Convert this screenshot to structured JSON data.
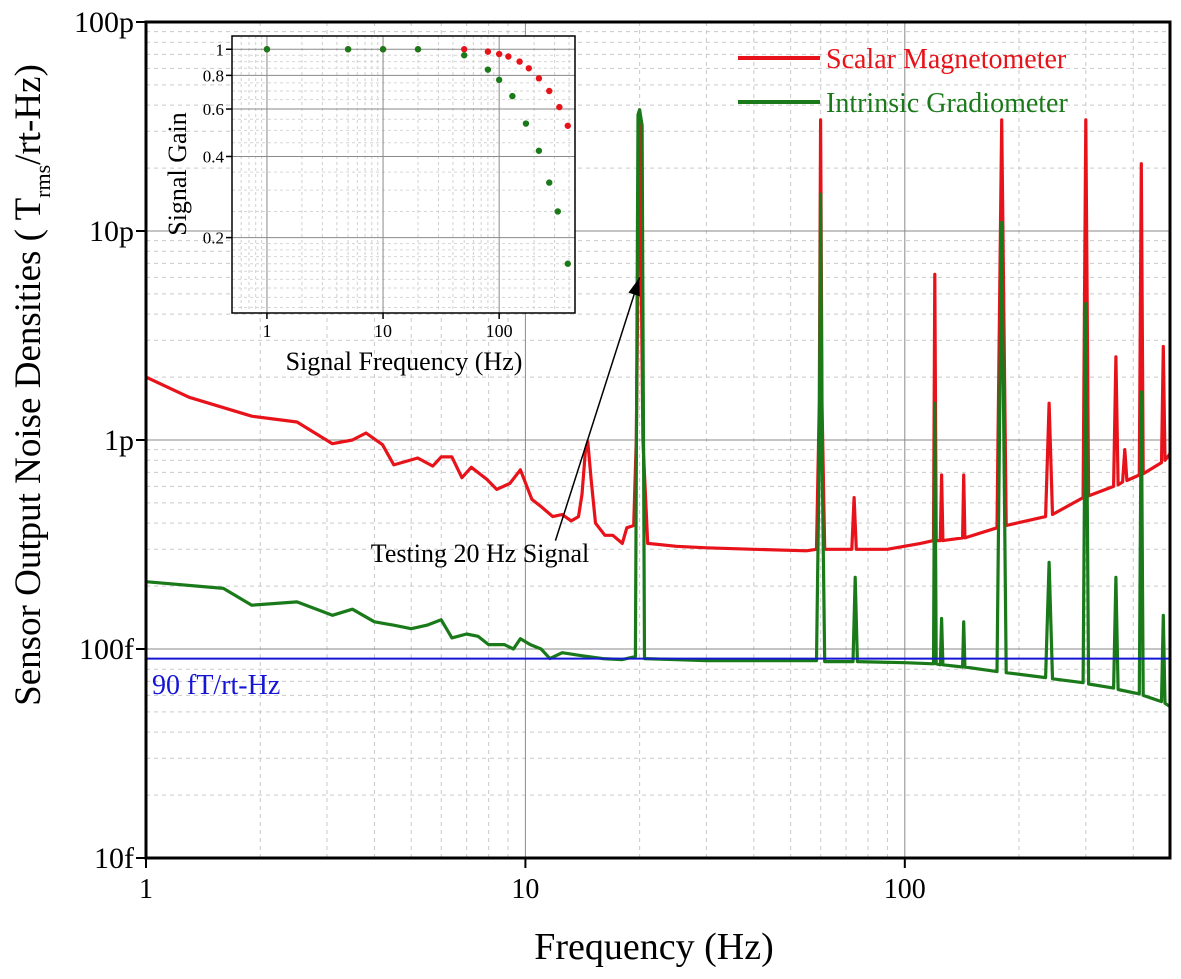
{
  "chart_data": [
    {
      "type": "line",
      "x_scale": "log",
      "y_scale": "log",
      "xlim": [
        1,
        500
      ],
      "ylim": [
        1e-14,
        1e-10
      ],
      "xlabel": "Frequency (Hz)",
      "ylabel_main": "Sensor Output Noise Densities ( T",
      "ylabel_sub": "rms",
      "ylabel_end": "/rt-Hz)",
      "x_ticks": [
        {
          "value": 1,
          "label": "1"
        },
        {
          "value": 10,
          "label": "10"
        },
        {
          "value": 100,
          "label": "100"
        }
      ],
      "y_ticks": [
        {
          "value": 1e-14,
          "label": "10f"
        },
        {
          "value": 1e-13,
          "label": "100f"
        },
        {
          "value": 1e-12,
          "label": "1p"
        },
        {
          "value": 1e-11,
          "label": "10p"
        },
        {
          "value": 1e-10,
          "label": "100p"
        }
      ],
      "grid": true,
      "legend_position": "top-right",
      "series": [
        {
          "name": "Scalar Magnetometer",
          "color": "#e8131a",
          "points": [
            [
              1,
              2e-12
            ],
            [
              1.3,
              1.6e-12
            ],
            [
              1.9,
              1.3e-12
            ],
            [
              2.5,
              1.22e-12
            ],
            [
              3.1,
              9.6e-13
            ],
            [
              3.5,
              1e-12
            ],
            [
              3.8,
              1.08e-12
            ],
            [
              4.2,
              9.5e-13
            ],
            [
              4.5,
              7.6e-13
            ],
            [
              5.2,
              8.2e-13
            ],
            [
              5.7,
              7.5e-13
            ],
            [
              6.0,
              8.3e-13
            ],
            [
              6.4,
              8.3e-13
            ],
            [
              6.8,
              6.6e-13
            ],
            [
              7.2,
              7.4e-13
            ],
            [
              7.9,
              6.5e-13
            ],
            [
              8.4,
              5.8e-13
            ],
            [
              9.1,
              6.2e-13
            ],
            [
              9.7,
              7.2e-13
            ],
            [
              10.4,
              5.2e-13
            ],
            [
              11.0,
              4.8e-13
            ],
            [
              11.8,
              4.3e-13
            ],
            [
              12.5,
              4.4e-13
            ],
            [
              13.2,
              4.1e-13
            ],
            [
              13.8,
              4.3e-13
            ],
            [
              14.1,
              5.5e-13
            ],
            [
              14.4,
              9e-13
            ],
            [
              14.6,
              9.8e-13
            ],
            [
              14.9,
              6.5e-13
            ],
            [
              15.3,
              4e-13
            ],
            [
              16.2,
              3.5e-13
            ],
            [
              17.0,
              3.5e-13
            ],
            [
              18.0,
              3.2e-13
            ],
            [
              18.5,
              3.8e-13
            ],
            [
              19.3,
              3.9e-13
            ],
            [
              19.6,
              1e-12
            ],
            [
              20.0,
              3.8e-11
            ],
            [
              20.4,
              1e-12
            ],
            [
              21.0,
              3.2e-13
            ],
            [
              25,
              3.1e-13
            ],
            [
              30,
              3.05e-13
            ],
            [
              40,
              3e-13
            ],
            [
              55,
              2.95e-13
            ],
            [
              58.5,
              3e-13
            ],
            [
              59.5,
              1.5e-12
            ],
            [
              60,
              3.4e-11
            ],
            [
              60.5,
              1.5e-12
            ],
            [
              61.5,
              3e-13
            ],
            [
              72.5,
              3e-13
            ],
            [
              73.5,
              5.3e-13
            ],
            [
              74.5,
              3e-13
            ],
            [
              90,
              3e-13
            ],
            [
              110,
              3.2e-13
            ],
            [
              119,
              3.3e-13
            ],
            [
              120,
              6.2e-12
            ],
            [
              121,
              3.3e-13
            ],
            [
              124,
              3.3e-13
            ],
            [
              125,
              6.8e-13
            ],
            [
              126,
              3.3e-13
            ],
            [
              142,
              3.4e-13
            ],
            [
              143,
              6.8e-13
            ],
            [
              144,
              3.4e-13
            ],
            [
              175,
              3.8e-13
            ],
            [
              180,
              3.4e-11
            ],
            [
              185,
              3.9e-13
            ],
            [
              235,
              4.3e-13
            ],
            [
              240,
              1.5e-12
            ],
            [
              245,
              4.4e-13
            ],
            [
              295,
              5.3e-13
            ],
            [
              300,
              3.4e-11
            ],
            [
              305,
              5.4e-13
            ],
            [
              355,
              6e-13
            ],
            [
              360,
              2.5e-12
            ],
            [
              365,
              6.1e-13
            ],
            [
              375,
              6.3e-13
            ],
            [
              380,
              9e-13
            ],
            [
              385,
              6.4e-13
            ],
            [
              415,
              6.8e-13
            ],
            [
              420,
              2.1e-11
            ],
            [
              425,
              6.9e-13
            ],
            [
              475,
              7.8e-13
            ],
            [
              480,
              2.8e-12
            ],
            [
              485,
              8e-13
            ],
            [
              500,
              8.6e-13
            ]
          ]
        },
        {
          "name": "Intrinsic Gradiometer",
          "color": "#1a7a1a",
          "points": [
            [
              1,
              2.1e-13
            ],
            [
              1.6,
              1.95e-13
            ],
            [
              1.9,
              1.62e-13
            ],
            [
              2.5,
              1.68e-13
            ],
            [
              3.1,
              1.45e-13
            ],
            [
              3.5,
              1.55e-13
            ],
            [
              4.0,
              1.35e-13
            ],
            [
              4.5,
              1.3e-13
            ],
            [
              5.0,
              1.25e-13
            ],
            [
              5.5,
              1.3e-13
            ],
            [
              6.0,
              1.38e-13
            ],
            [
              6.4,
              1.13e-13
            ],
            [
              7.0,
              1.18e-13
            ],
            [
              7.5,
              1.15e-13
            ],
            [
              8.0,
              1.05e-13
            ],
            [
              8.8,
              1.05e-13
            ],
            [
              9.3,
              1e-13
            ],
            [
              9.7,
              1.12e-13
            ],
            [
              10.3,
              1.05e-13
            ],
            [
              11.0,
              1e-13
            ],
            [
              11.6,
              9e-14
            ],
            [
              12.5,
              9.6e-14
            ],
            [
              14,
              9.3e-14
            ],
            [
              16,
              9e-14
            ],
            [
              18,
              8.9e-14
            ],
            [
              19.5,
              9.2e-14
            ],
            [
              19.8,
              3.6e-11
            ],
            [
              20.0,
              3.8e-11
            ],
            [
              20.3,
              3.2e-11
            ],
            [
              20.6,
              9e-14
            ],
            [
              25,
              8.9e-14
            ],
            [
              30,
              8.8e-14
            ],
            [
              40,
              8.8e-14
            ],
            [
              58.5,
              8.8e-14
            ],
            [
              59.5,
              9e-13
            ],
            [
              60,
              1.5e-11
            ],
            [
              60.5,
              9e-13
            ],
            [
              61.5,
              8.7e-14
            ],
            [
              73,
              8.7e-14
            ],
            [
              74,
              2.2e-13
            ],
            [
              75,
              8.7e-14
            ],
            [
              100,
              8.6e-14
            ],
            [
              119,
              8.5e-14
            ],
            [
              120,
              1.5e-12
            ],
            [
              121,
              8.5e-14
            ],
            [
              124,
              8.4e-14
            ],
            [
              125,
              1.4e-13
            ],
            [
              126,
              8.4e-14
            ],
            [
              142,
              8.2e-14
            ],
            [
              143,
              1.35e-13
            ],
            [
              144,
              8.2e-14
            ],
            [
              175,
              7.8e-14
            ],
            [
              180,
              1.1e-11
            ],
            [
              185,
              7.7e-14
            ],
            [
              235,
              7.3e-14
            ],
            [
              240,
              2.6e-13
            ],
            [
              245,
              7.2e-14
            ],
            [
              295,
              6.9e-14
            ],
            [
              300,
              4.5e-12
            ],
            [
              305,
              6.8e-14
            ],
            [
              355,
              6.5e-14
            ],
            [
              360,
              2.2e-13
            ],
            [
              365,
              6.4e-14
            ],
            [
              415,
              6.1e-14
            ],
            [
              420,
              1.7e-12
            ],
            [
              425,
              6e-14
            ],
            [
              475,
              5.6e-14
            ],
            [
              480,
              1.45e-13
            ],
            [
              485,
              5.5e-14
            ],
            [
              500,
              5.3e-14
            ]
          ]
        }
      ],
      "reference_line": {
        "value": 9e-14,
        "label": "90 fT/rt-Hz",
        "color": "#1515d6"
      },
      "annotation": {
        "text": "Testing 20 Hz Signal",
        "arrow_from": [
          12,
          3.3e-13
        ],
        "arrow_to": [
          20,
          6e-12
        ]
      }
    },
    {
      "type": "scatter",
      "x_scale": "log",
      "y_scale": "log",
      "xlim": [
        0.5,
        450
      ],
      "ylim": [
        0.105,
        1.12
      ],
      "xlabel": "Signal Frequency (Hz)",
      "ylabel": "Signal Gain",
      "x_ticks": [
        {
          "value": 1,
          "label": "1"
        },
        {
          "value": 10,
          "label": "10"
        },
        {
          "value": 100,
          "label": "100"
        }
      ],
      "y_ticks": [
        {
          "value": 0.2,
          "label": "0.2"
        },
        {
          "value": 0.4,
          "label": "0.4"
        },
        {
          "value": 0.6,
          "label": "0.6"
        },
        {
          "value": 0.8,
          "label": "0.8"
        },
        {
          "value": 1,
          "label": "1"
        }
      ],
      "grid": true,
      "series": [
        {
          "color": "#e8131a",
          "points": [
            [
              1,
              1.0
            ],
            [
              5,
              1.0
            ],
            [
              10,
              1.0
            ],
            [
              20,
              1.0
            ],
            [
              50,
              1.0
            ],
            [
              80,
              0.98
            ],
            [
              100,
              0.96
            ],
            [
              120,
              0.94
            ],
            [
              150,
              0.9
            ],
            [
              180,
              0.85
            ],
            [
              220,
              0.78
            ],
            [
              270,
              0.7
            ],
            [
              330,
              0.61
            ],
            [
              390,
              0.52
            ]
          ]
        },
        {
          "color": "#1a7a1a",
          "points": [
            [
              1,
              1.0
            ],
            [
              5,
              1.0
            ],
            [
              10,
              1.0
            ],
            [
              20,
              1.0
            ],
            [
              50,
              0.95
            ],
            [
              80,
              0.84
            ],
            [
              100,
              0.77
            ],
            [
              130,
              0.67
            ],
            [
              170,
              0.53
            ],
            [
              220,
              0.42
            ],
            [
              270,
              0.32
            ],
            [
              320,
              0.25
            ],
            [
              390,
              0.16
            ]
          ]
        }
      ]
    }
  ]
}
